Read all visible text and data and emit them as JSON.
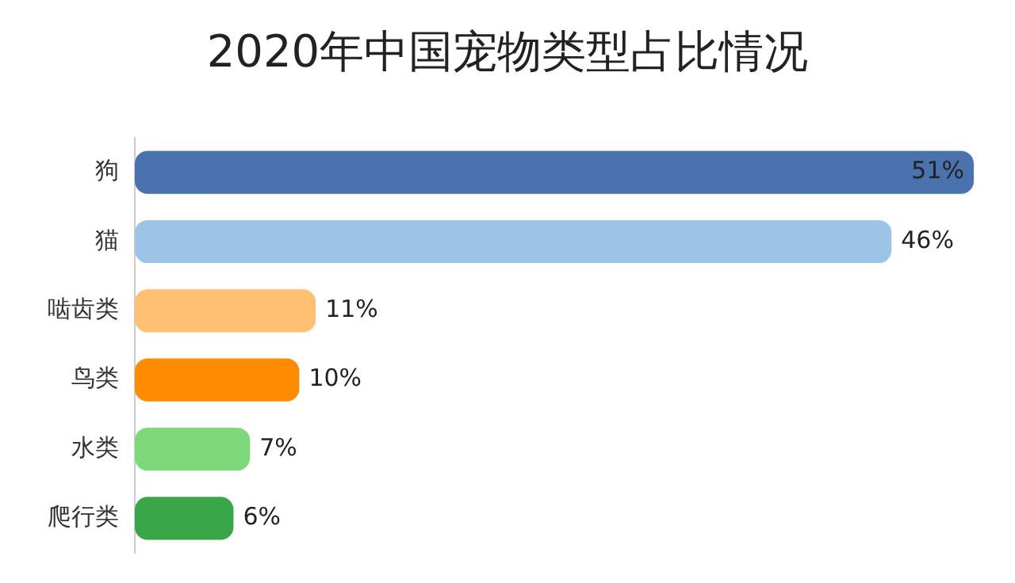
{
  "chart_data": {
    "type": "bar",
    "orientation": "horizontal",
    "title": "2020年中国宠物类型占比情况",
    "categories": [
      "狗",
      "猫",
      "啮齿类",
      "鸟类",
      "水类",
      "爬行类"
    ],
    "values": [
      51,
      46,
      11,
      10,
      7,
      6
    ],
    "colors": [
      "#4a72ae",
      "#9dc3e6",
      "#ffc071",
      "#ff8c00",
      "#7dd87a",
      "#3aa64a"
    ],
    "value_labels": [
      "51%",
      "46%",
      "11%",
      "10%",
      "7%",
      "6%"
    ],
    "grid": false,
    "legend": false,
    "tick_labels": "y"
  }
}
